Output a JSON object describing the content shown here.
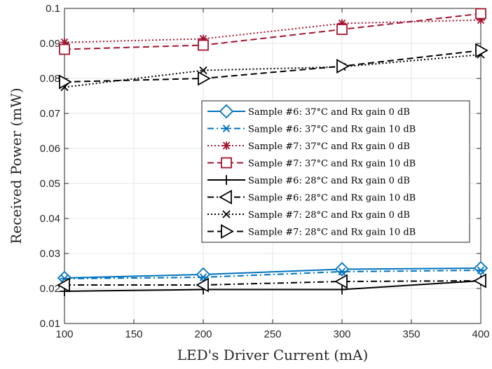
{
  "chart_data": {
    "type": "line",
    "title": "",
    "xlabel": "LED's Driver Current (mA)",
    "ylabel": "Received Power (mW)",
    "xlim": [
      100,
      400
    ],
    "ylim": [
      0.01,
      0.1
    ],
    "xticks": [
      100,
      150,
      200,
      250,
      300,
      350,
      400
    ],
    "yticks": [
      0.01,
      0.02,
      0.03,
      0.04,
      0.05,
      0.06,
      0.07,
      0.08,
      0.09,
      0.1
    ],
    "ytick_labels": [
      "0.01",
      "0.02",
      "0.03",
      "0.04",
      "0.05",
      "0.06",
      "0.07",
      "0.08",
      "0.09",
      "0.1"
    ],
    "grid": true,
    "legend_position": "center-right",
    "x": [
      100,
      200,
      300,
      400
    ],
    "series": [
      {
        "name": "Sample #6: 37°C and Rx gain 0 dB",
        "values": [
          0.023,
          0.024,
          0.0255,
          0.0258
        ],
        "color": "#0072BD",
        "dash": "solid",
        "marker": "diamond"
      },
      {
        "name": "Sample #6: 37°C and Rx gain 10 dB",
        "values": [
          0.0228,
          0.0232,
          0.0248,
          0.0252
        ],
        "color": "#0072BD",
        "dash": "dashdot",
        "marker": "star"
      },
      {
        "name": "Sample #7: 37°C and Rx gain 0 dB",
        "values": [
          0.0903,
          0.0913,
          0.0957,
          0.0967
        ],
        "color": "#A2142F",
        "dash": "dotted",
        "marker": "asterisk"
      },
      {
        "name": "Sample #7: 37°C and Rx gain 10 dB",
        "values": [
          0.0883,
          0.0895,
          0.094,
          0.0985
        ],
        "color": "#A2142F",
        "dash": "dashed",
        "marker": "square"
      },
      {
        "name": "Sample #6: 28°C and Rx gain 0 dB",
        "values": [
          0.0192,
          0.0197,
          0.0197,
          0.0222
        ],
        "color": "#000000",
        "dash": "solid",
        "marker": "plus"
      },
      {
        "name": "Sample #6: 28°C and Rx gain 10 dB",
        "values": [
          0.021,
          0.021,
          0.022,
          0.0222
        ],
        "color": "#000000",
        "dash": "dashdot",
        "marker": "triangle-left"
      },
      {
        "name": "Sample #7: 28°C and Rx gain 0 dB",
        "values": [
          0.0775,
          0.0823,
          0.0833,
          0.0868
        ],
        "color": "#000000",
        "dash": "dotted",
        "marker": "cross"
      },
      {
        "name": "Sample #7: 28°C and Rx gain 10 dB",
        "values": [
          0.079,
          0.08,
          0.0835,
          0.088
        ],
        "color": "#000000",
        "dash": "dashed",
        "marker": "triangle-right"
      }
    ]
  }
}
